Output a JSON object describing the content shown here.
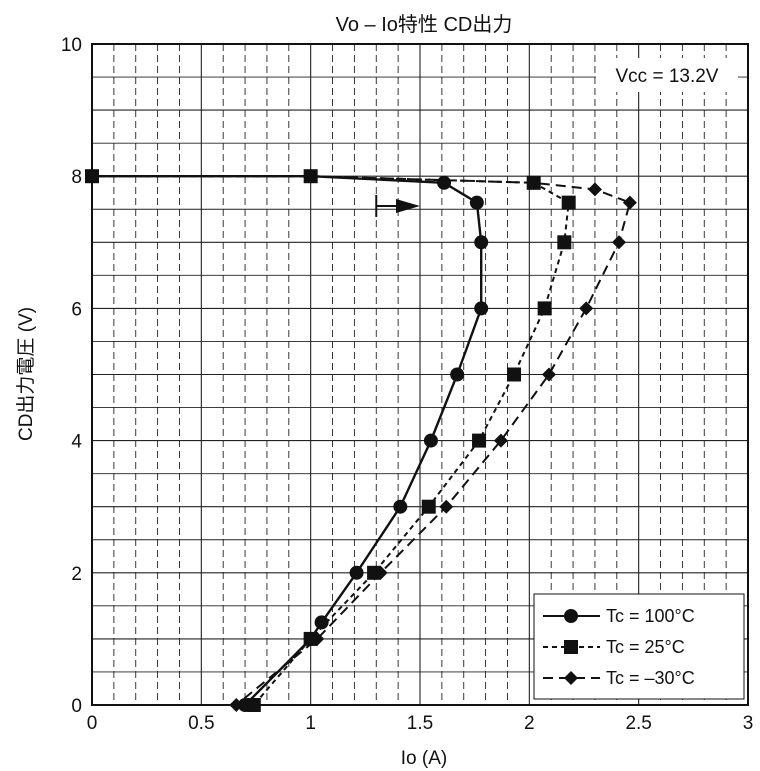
{
  "chart_data": {
    "type": "line",
    "title": "Vo – Io特性 CD出力",
    "xlabel": "Io  (A)",
    "ylabel": "CD出力電圧  (V)",
    "xlim": [
      0,
      3
    ],
    "ylim": [
      0,
      10
    ],
    "x_ticks": [
      "0",
      "0.5",
      "1",
      "1.5",
      "2",
      "2.5",
      "3"
    ],
    "y_ticks": [
      "0",
      "2",
      "4",
      "6",
      "8",
      "10"
    ],
    "grid": true,
    "legend_position": "bottom-right",
    "annotation": "Vcc = 13.2V",
    "arrow": {
      "x_from": 1.3,
      "x_to": 1.5,
      "y": 7.55
    },
    "series": [
      {
        "name": "Tc = 100°C",
        "marker": "circle",
        "dash": "solid",
        "points": [
          [
            0,
            8
          ],
          [
            1,
            8
          ],
          [
            1.61,
            7.9
          ],
          [
            1.76,
            7.6
          ],
          [
            1.78,
            7.0
          ],
          [
            1.78,
            6.0
          ],
          [
            1.67,
            5.0
          ],
          [
            1.55,
            4.0
          ],
          [
            1.41,
            3.0
          ],
          [
            1.21,
            2.0
          ],
          [
            1.05,
            1.25
          ],
          [
            1.0,
            1.0
          ],
          [
            0.7,
            0
          ]
        ]
      },
      {
        "name": "Tc = 25°C",
        "marker": "square",
        "dash": "short",
        "points": [
          [
            0,
            8
          ],
          [
            1,
            8
          ],
          [
            2.02,
            7.9
          ],
          [
            2.18,
            7.6
          ],
          [
            2.16,
            7.0
          ],
          [
            2.07,
            6.0
          ],
          [
            1.93,
            5.0
          ],
          [
            1.77,
            4.0
          ],
          [
            1.54,
            3.0
          ],
          [
            1.29,
            2.0
          ],
          [
            1.0,
            1.0
          ],
          [
            0.74,
            0
          ]
        ]
      },
      {
        "name": "Tc = –30°C",
        "marker": "diamond",
        "dash": "long",
        "points": [
          [
            0,
            8
          ],
          [
            1,
            8
          ],
          [
            2.02,
            7.9
          ],
          [
            2.3,
            7.8
          ],
          [
            2.46,
            7.6
          ],
          [
            2.41,
            7.0
          ],
          [
            2.26,
            6.0
          ],
          [
            2.09,
            5.0
          ],
          [
            1.87,
            4.0
          ],
          [
            1.62,
            3.0
          ],
          [
            1.32,
            2.0
          ],
          [
            1.03,
            1.0
          ],
          [
            0.66,
            0
          ]
        ]
      }
    ]
  }
}
